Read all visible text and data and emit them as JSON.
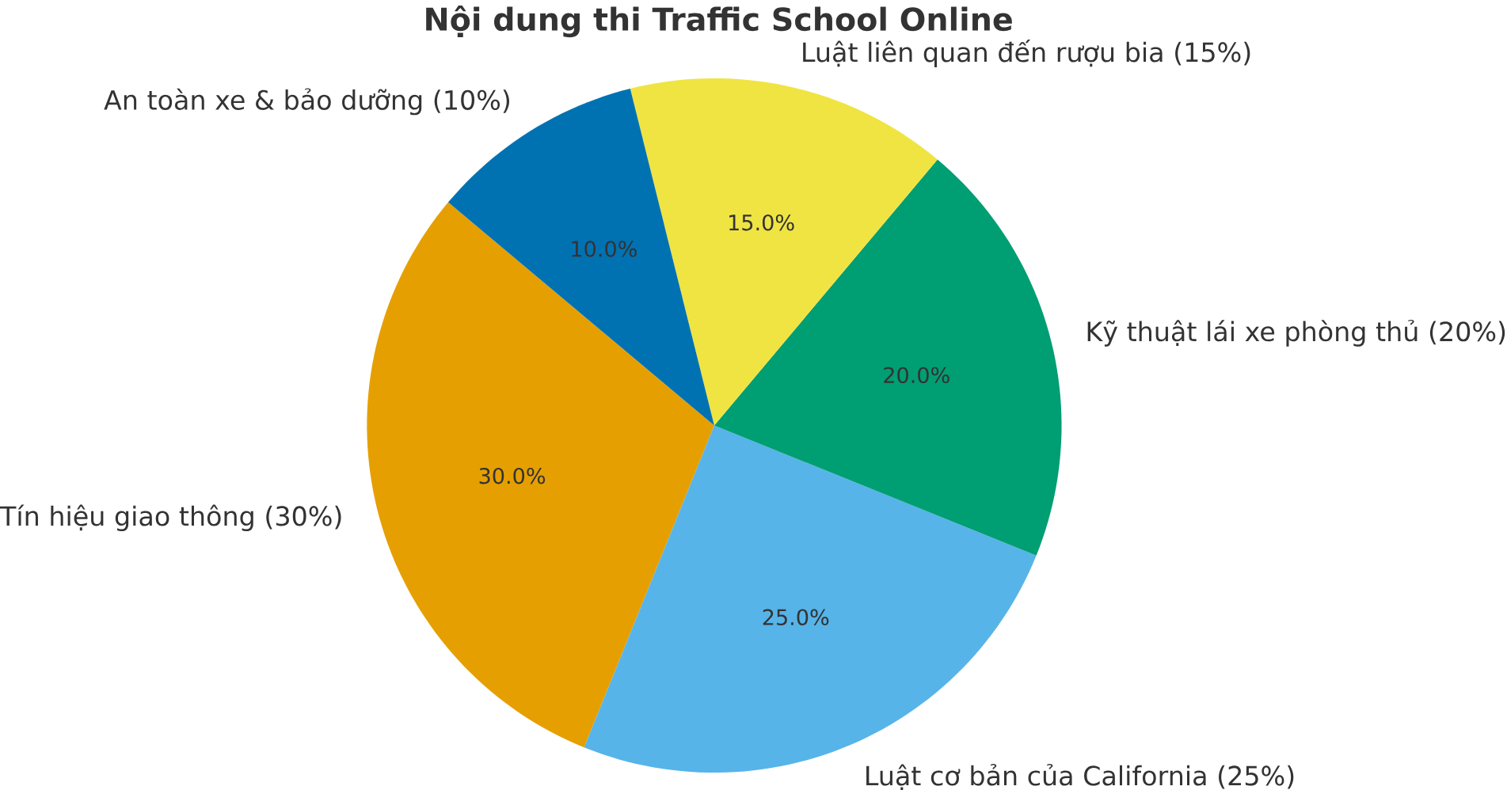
{
  "chart_data": {
    "type": "pie",
    "title": "Nội dung thi Traffic School Online",
    "categories": [
      "Tín hiệu giao thông (30%)",
      "Luật cơ bản của California (25%)",
      "Kỹ thuật lái xe phòng thủ (20%)",
      "Luật liên quan đến rượu bia (15%)",
      "An toàn xe & bảo dưỡng (10%)"
    ],
    "values": [
      30,
      25,
      20,
      15,
      10
    ],
    "colors": [
      "#e69f00",
      "#56b4e9",
      "#009e73",
      "#f0e442",
      "#0072b2"
    ],
    "value_labels": [
      "30.0%",
      "25.0%",
      "20.0%",
      "15.0%",
      "10.0%"
    ]
  }
}
